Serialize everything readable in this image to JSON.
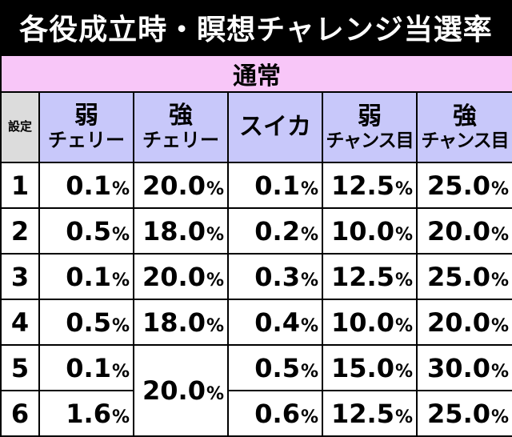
{
  "title": "各役成立時・瞑想チャレンジ当選率",
  "section": "通常",
  "columns": {
    "setting": "設定",
    "c1": {
      "top": "弱",
      "bottom": "チェリー"
    },
    "c2": {
      "top": "強",
      "bottom": "チェリー"
    },
    "c3": {
      "top": "スイカ",
      "bottom": ""
    },
    "c4": {
      "top": "弱",
      "bottom": "チャンス目"
    },
    "c5": {
      "top": "強",
      "bottom": "チャンス目"
    }
  },
  "rows": [
    {
      "setting": "1",
      "c1": "0.1",
      "c2": "20.0",
      "c3": "0.1",
      "c4": "12.5",
      "c5": "25.0"
    },
    {
      "setting": "2",
      "c1": "0.5",
      "c2": "18.0",
      "c3": "0.2",
      "c4": "10.0",
      "c5": "20.0"
    },
    {
      "setting": "3",
      "c1": "0.1",
      "c2": "20.0",
      "c3": "0.3",
      "c4": "12.5",
      "c5": "25.0"
    },
    {
      "setting": "4",
      "c1": "0.5",
      "c2": "18.0",
      "c3": "0.4",
      "c4": "10.0",
      "c5": "20.0"
    },
    {
      "setting": "5",
      "c1": "0.1",
      "c2": "20.0",
      "c3": "0.5",
      "c4": "15.0",
      "c5": "30.0"
    },
    {
      "setting": "6",
      "c1": "1.6",
      "c2": "",
      "c3": "0.6",
      "c4": "12.5",
      "c5": "25.0"
    }
  ],
  "unit": "%",
  "colors": {
    "title_bg": "#000000",
    "section_bg": "#f8c6f8",
    "header_bg": "#c8c8fa",
    "setting_bg": "#dcdcdc"
  }
}
